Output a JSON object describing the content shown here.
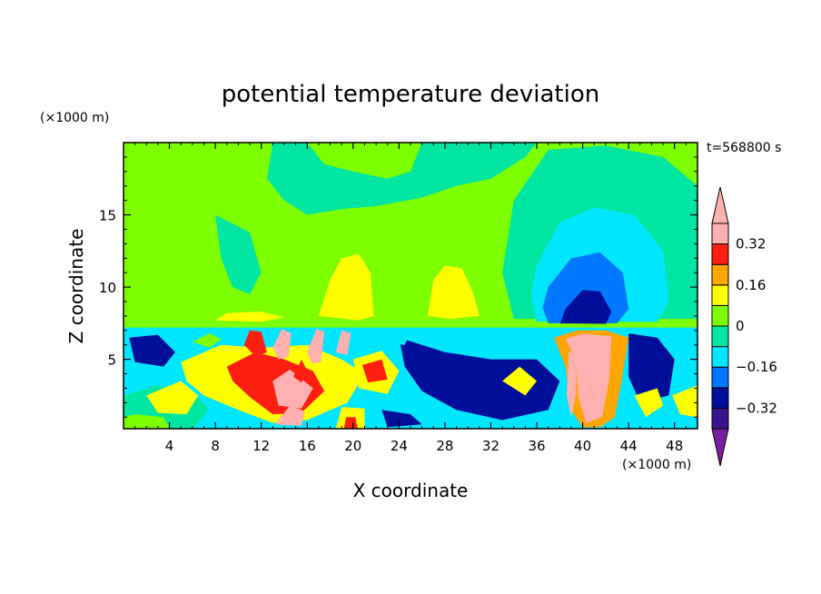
{
  "chart_data": {
    "type": "heatmap",
    "title": "potential temperature deviation",
    "xlabel": "X coordinate",
    "ylabel": "Z coordinate",
    "x_unit": "(×1000 m)",
    "y_unit": "(×1000 m)",
    "time_label": "t=568800 s",
    "xlim": [
      0,
      50
    ],
    "ylim": [
      0.2,
      20
    ],
    "x_ticks": [
      4,
      8,
      12,
      16,
      20,
      24,
      28,
      32,
      36,
      40,
      44,
      48
    ],
    "y_ticks": [
      5,
      10,
      15
    ],
    "colorbar": {
      "levels": [
        -0.4,
        -0.32,
        -0.24,
        -0.16,
        -0.08,
        0,
        0.08,
        0.16,
        0.24,
        0.32,
        0.4
      ],
      "tick_labels": [
        "0.32",
        "0.16",
        "0",
        "−0.16",
        "−0.32"
      ],
      "tick_values": [
        0.32,
        0.16,
        0,
        -0.16,
        -0.32
      ],
      "colors": [
        "#7a1fa0",
        "#3a148e",
        "#000f9a",
        "#0077ff",
        "#00e6ff",
        "#00e6a0",
        "#7dff00",
        "#ffff00",
        "#ffa500",
        "#ff1f10",
        "#ffb0b0"
      ],
      "extend": "both"
    },
    "background_value": 0.02,
    "regions": [
      {
        "value": -0.05,
        "points": [
          [
            13,
            20
          ],
          [
            16,
            20
          ],
          [
            17.5,
            18.5
          ],
          [
            20,
            18
          ],
          [
            23,
            17.5
          ],
          [
            25,
            18
          ],
          [
            26,
            20
          ],
          [
            36,
            20
          ],
          [
            35,
            19
          ],
          [
            32,
            17.5
          ],
          [
            29,
            17
          ],
          [
            26,
            16.2
          ],
          [
            22,
            15.6
          ],
          [
            19,
            15.4
          ],
          [
            16,
            15
          ],
          [
            14,
            16
          ],
          [
            12.5,
            17.5
          ]
        ]
      },
      {
        "value": -0.05,
        "points": [
          [
            8,
            15
          ],
          [
            11,
            13.8
          ],
          [
            12,
            11
          ],
          [
            11,
            9.5
          ],
          [
            9.5,
            10
          ],
          [
            8.5,
            12
          ]
        ]
      },
      {
        "value": -0.05,
        "points": [
          [
            34,
            16
          ],
          [
            37,
            19.5
          ],
          [
            42,
            19.8
          ],
          [
            47,
            19
          ],
          [
            50,
            17
          ],
          [
            50,
            7.8
          ],
          [
            34,
            7.8
          ],
          [
            33,
            11
          ]
        ]
      },
      {
        "value": -0.12,
        "points": [
          [
            36,
            11.5
          ],
          [
            38,
            14.5
          ],
          [
            41,
            15.5
          ],
          [
            44.5,
            15
          ],
          [
            47,
            12.5
          ],
          [
            47.5,
            9
          ],
          [
            46.5,
            7.6
          ],
          [
            36,
            7.6
          ],
          [
            35.5,
            9.5
          ]
        ]
      },
      {
        "value": -0.2,
        "points": [
          [
            37,
            10
          ],
          [
            39,
            12
          ],
          [
            41.5,
            12.4
          ],
          [
            43.5,
            11
          ],
          [
            44,
            8.5
          ],
          [
            43,
            7.5
          ],
          [
            37,
            7.5
          ],
          [
            36.5,
            8.6
          ]
        ]
      },
      {
        "value": -0.28,
        "points": [
          [
            38.5,
            8.5
          ],
          [
            40,
            9.8
          ],
          [
            41.5,
            9.7
          ],
          [
            42.5,
            8.3
          ],
          [
            42,
            7.4
          ],
          [
            38,
            7.4
          ]
        ]
      },
      {
        "value": 0.1,
        "points": [
          [
            17,
            8
          ],
          [
            18,
            10.5
          ],
          [
            19,
            12
          ],
          [
            20.5,
            12.3
          ],
          [
            21.5,
            11
          ],
          [
            21.8,
            8
          ],
          [
            20.5,
            7.7
          ]
        ]
      },
      {
        "value": 0.1,
        "points": [
          [
            26.5,
            8
          ],
          [
            27,
            10.5
          ],
          [
            28,
            11.5
          ],
          [
            29.5,
            11.3
          ],
          [
            30.5,
            9.5
          ],
          [
            31,
            8
          ],
          [
            28.5,
            7.8
          ]
        ]
      },
      {
        "value": 0.1,
        "points": [
          [
            8,
            7.7
          ],
          [
            9,
            8.2
          ],
          [
            12,
            8.3
          ],
          [
            14,
            7.9
          ],
          [
            12,
            7.6
          ]
        ]
      },
      {
        "value": 0.07,
        "points": [
          [
            0,
            7.2
          ],
          [
            36,
            7.2
          ],
          [
            50,
            7.2
          ],
          [
            50,
            7.4
          ],
          [
            36,
            7.5
          ],
          [
            0,
            7.5
          ]
        ]
      },
      {
        "value": -0.15,
        "points": [
          [
            0,
            0.2
          ],
          [
            50,
            0.2
          ],
          [
            50,
            7.2
          ],
          [
            0,
            7.2
          ]
        ]
      },
      {
        "value": -0.3,
        "points": [
          [
            24,
            6.5
          ],
          [
            28,
            5.5
          ],
          [
            32,
            5
          ],
          [
            36,
            5
          ],
          [
            38,
            3.5
          ],
          [
            37,
            1.5
          ],
          [
            33,
            0.8
          ],
          [
            29,
            1.5
          ],
          [
            26,
            2.8
          ],
          [
            24.5,
            4.5
          ]
        ]
      },
      {
        "value": -0.3,
        "points": [
          [
            44,
            6.8
          ],
          [
            46.5,
            6.5
          ],
          [
            48,
            5
          ],
          [
            47.5,
            2.5
          ],
          [
            45,
            2
          ],
          [
            44,
            3.8
          ]
        ]
      },
      {
        "value": -0.3,
        "points": [
          [
            0.5,
            6.5
          ],
          [
            3,
            6.7
          ],
          [
            4.5,
            5.5
          ],
          [
            3.5,
            4.5
          ],
          [
            1,
            4.8
          ]
        ]
      },
      {
        "value": -0.3,
        "points": [
          [
            22.5,
            1.5
          ],
          [
            25,
            1.2
          ],
          [
            26,
            0.5
          ],
          [
            23,
            0.3
          ]
        ]
      },
      {
        "value": -0.05,
        "points": [
          [
            0,
            0.2
          ],
          [
            6,
            0.2
          ],
          [
            7.5,
            1.5
          ],
          [
            6,
            2.8
          ],
          [
            3,
            3.2
          ],
          [
            0,
            2.5
          ]
        ]
      },
      {
        "value": 0.12,
        "points": [
          [
            5,
            4.8
          ],
          [
            8.5,
            6
          ],
          [
            12,
            5.8
          ],
          [
            16,
            6
          ],
          [
            19,
            5
          ],
          [
            21,
            4
          ],
          [
            19.5,
            2
          ],
          [
            16,
            0.8
          ],
          [
            13,
            0.6
          ],
          [
            10,
            1.5
          ],
          [
            7,
            2.5
          ],
          [
            5.5,
            3.5
          ]
        ]
      },
      {
        "value": 0.25,
        "points": [
          [
            9,
            4.5
          ],
          [
            11.5,
            5.5
          ],
          [
            14,
            5
          ],
          [
            16.5,
            4.2
          ],
          [
            17.5,
            2.8
          ],
          [
            15.5,
            1.3
          ],
          [
            13,
            1.2
          ],
          [
            11,
            2.4
          ],
          [
            9.5,
            3.5
          ]
        ]
      },
      {
        "value": 0.33,
        "points": [
          [
            13,
            3.5
          ],
          [
            14.5,
            4.3
          ],
          [
            16.5,
            3
          ],
          [
            15.5,
            1.6
          ],
          [
            13.5,
            1.8
          ]
        ]
      },
      {
        "value": 0.38,
        "points": [
          [
            13.2,
            0.5
          ],
          [
            14.5,
            1.8
          ],
          [
            15.8,
            1.4
          ],
          [
            15.5,
            0.4
          ]
        ]
      },
      {
        "value": 0.12,
        "points": [
          [
            2,
            2.5
          ],
          [
            5,
            3.5
          ],
          [
            6.5,
            2.5
          ],
          [
            5.5,
            1.2
          ],
          [
            3,
            1.3
          ]
        ]
      },
      {
        "value": 0.12,
        "points": [
          [
            20,
            5
          ],
          [
            22.5,
            5.6
          ],
          [
            24,
            4.2
          ],
          [
            23,
            2.6
          ],
          [
            20.5,
            3
          ]
        ]
      },
      {
        "value": 0.25,
        "points": [
          [
            20.8,
            4.6
          ],
          [
            22.5,
            5
          ],
          [
            23,
            3.6
          ],
          [
            21.3,
            3.4
          ]
        ]
      },
      {
        "value": 0.12,
        "points": [
          [
            18.5,
            0.2
          ],
          [
            21,
            0.2
          ],
          [
            21,
            1.6
          ],
          [
            19,
            1.7
          ]
        ]
      },
      {
        "value": 0.3,
        "points": [
          [
            19.2,
            0.2
          ],
          [
            20.4,
            0.2
          ],
          [
            20.2,
            1
          ],
          [
            19.4,
            1
          ]
        ]
      },
      {
        "value": 0.1,
        "points": [
          [
            33,
            3.5
          ],
          [
            34.5,
            4.5
          ],
          [
            36,
            3.5
          ],
          [
            35,
            2.5
          ]
        ]
      },
      {
        "value": 0.2,
        "points": [
          [
            37.5,
            6.5
          ],
          [
            39.5,
            7
          ],
          [
            42,
            7
          ],
          [
            44,
            6.5
          ],
          [
            43.5,
            4
          ],
          [
            42.8,
            1
          ],
          [
            41.5,
            0.3
          ],
          [
            40,
            0.3
          ],
          [
            39,
            1.5
          ],
          [
            38.5,
            4.5
          ]
        ]
      },
      {
        "value": 0.33,
        "points": [
          [
            38.5,
            6.4
          ],
          [
            40,
            6.8
          ],
          [
            42.5,
            6.6
          ],
          [
            42.3,
            3.5
          ],
          [
            41.7,
            1
          ],
          [
            40.3,
            0.6
          ],
          [
            39.6,
            2.5
          ],
          [
            39.4,
            5
          ]
        ]
      },
      {
        "value": 0.38,
        "points": [
          [
            40,
            6.5
          ],
          [
            41.8,
            6.6
          ],
          [
            41.4,
            4
          ],
          [
            41,
            1.2
          ],
          [
            40.4,
            1
          ],
          [
            40.3,
            4
          ]
        ]
      },
      {
        "value": 0.38,
        "points": [
          [
            38.8,
            5.5
          ],
          [
            39.5,
            5.8
          ],
          [
            39.4,
            2.5
          ],
          [
            39,
            1
          ],
          [
            38.6,
            2.5
          ]
        ]
      },
      {
        "value": 0.12,
        "points": [
          [
            44.5,
            2.5
          ],
          [
            46.5,
            3
          ],
          [
            47,
            1.8
          ],
          [
            45.5,
            1
          ]
        ]
      },
      {
        "value": 0.12,
        "points": [
          [
            47.8,
            2.5
          ],
          [
            50,
            3.2
          ],
          [
            50,
            1
          ],
          [
            48.5,
            1.2
          ]
        ]
      },
      {
        "value": 0.05,
        "points": [
          [
            0,
            0.2
          ],
          [
            4,
            0.2
          ],
          [
            3.5,
            1
          ],
          [
            1,
            1.2
          ],
          [
            0,
            1
          ]
        ]
      },
      {
        "value": 0.3,
        "points": [
          [
            10.5,
            6
          ],
          [
            11,
            7
          ],
          [
            12,
            6.9
          ],
          [
            12.5,
            5.5
          ],
          [
            11.5,
            5.2
          ]
        ]
      },
      {
        "value": 0.38,
        "points": [
          [
            13,
            5.8
          ],
          [
            13.8,
            7.1
          ],
          [
            14.6,
            6.8
          ],
          [
            14.4,
            5.2
          ],
          [
            13.5,
            5
          ]
        ]
      },
      {
        "value": 0.38,
        "points": [
          [
            16,
            5.5
          ],
          [
            16.8,
            7.1
          ],
          [
            17.5,
            6.9
          ],
          [
            17.2,
            4.8
          ],
          [
            16.4,
            4.7
          ]
        ]
      },
      {
        "value": 0.38,
        "points": [
          [
            18.5,
            5.5
          ],
          [
            19,
            7
          ],
          [
            19.8,
            6.8
          ],
          [
            19.5,
            5.3
          ]
        ]
      },
      {
        "value": 0.3,
        "points": [
          [
            14.8,
            3.8
          ],
          [
            15.5,
            5
          ],
          [
            16,
            4.2
          ],
          [
            15.5,
            3.4
          ]
        ]
      },
      {
        "value": -0.1,
        "points": [
          [
            22,
            6.2
          ],
          [
            23,
            7
          ],
          [
            25,
            6.9
          ],
          [
            24.5,
            6
          ]
        ]
      },
      {
        "value": 0.05,
        "points": [
          [
            6,
            6.2
          ],
          [
            7.5,
            6.8
          ],
          [
            8.5,
            6.4
          ],
          [
            7.5,
            5.8
          ]
        ]
      }
    ]
  }
}
